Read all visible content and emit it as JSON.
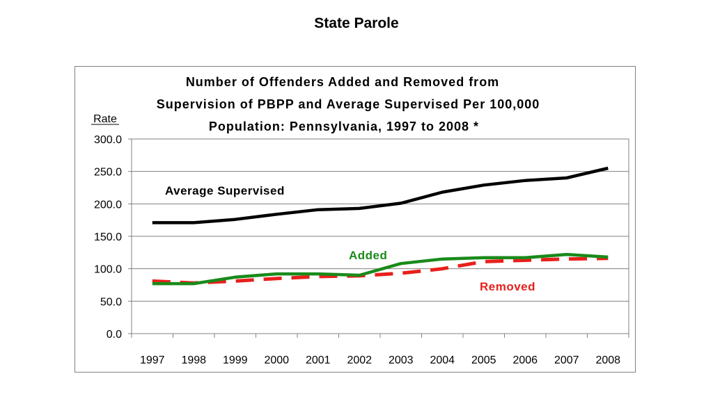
{
  "page": {
    "title": "State Parole"
  },
  "chart_data": {
    "type": "line",
    "title_lines": [
      "Number of Offenders Added and Removed from",
      "Supervision of PBPP and Average Supervised Per 100,000",
      "Population:  Pennsylvania, 1997 to 2008 *"
    ],
    "ylabel": "Rate",
    "xlabel": "",
    "ylim": [
      0,
      300
    ],
    "y_ticks": [
      "300.0",
      "250.0",
      "200.0",
      "150.0",
      "100.0",
      "50.0",
      "0.0"
    ],
    "y_tick_values": [
      300,
      250,
      200,
      150,
      100,
      50,
      0
    ],
    "categories": [
      "1997",
      "1998",
      "1999",
      "2000",
      "2001",
      "2002",
      "2003",
      "2004",
      "2005",
      "2006",
      "2007",
      "2008"
    ],
    "grid": true,
    "series": [
      {
        "name": "Average Supervised",
        "color": "#000000",
        "style": "solid",
        "values": [
          171,
          171,
          176,
          184,
          191,
          193,
          201,
          218,
          229,
          236,
          240,
          255
        ]
      },
      {
        "name": "Added",
        "color": "#1a8a1a",
        "style": "solid",
        "values": [
          77,
          77,
          87,
          92,
          92,
          90,
          108,
          115,
          117,
          117,
          122,
          118
        ]
      },
      {
        "name": "Removed",
        "color": "#e8201c",
        "style": "dashed",
        "values": [
          81,
          78,
          81,
          85,
          88,
          89,
          93,
          100,
          111,
          113,
          115,
          116
        ]
      }
    ]
  }
}
